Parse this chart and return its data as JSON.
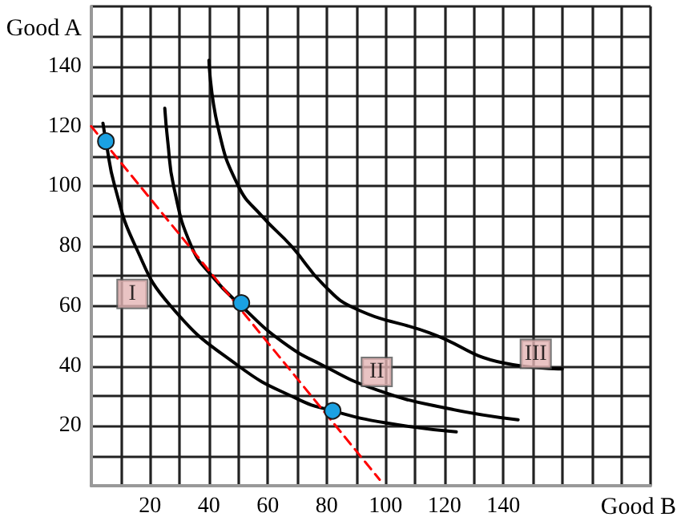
{
  "chart_data": {
    "type": "line",
    "xlabel": "Good B",
    "ylabel": "Good A",
    "xlim": [
      0,
      190
    ],
    "ylim": [
      0,
      160
    ],
    "xticks": [
      {
        "value": 0,
        "label": null
      },
      {
        "value": 10,
        "label": null
      },
      20,
      {
        "value": 30,
        "label": null
      },
      40,
      {
        "value": 50,
        "label": null
      },
      60,
      {
        "value": 70,
        "label": null
      },
      80,
      {
        "value": 90,
        "label": null
      },
      100,
      {
        "value": 110,
        "label": null
      },
      120,
      {
        "value": 130,
        "label": null
      },
      140,
      {
        "value": 150,
        "label": null
      },
      {
        "value": 160,
        "label": null
      },
      {
        "value": 170,
        "label": null
      },
      {
        "value": 180,
        "label": null
      },
      {
        "value": 190,
        "label": null
      }
    ],
    "yticks": [
      {
        "value": 0,
        "label": null
      },
      {
        "value": 10,
        "label": null
      },
      20,
      {
        "value": 30,
        "label": null
      },
      40,
      {
        "value": 50,
        "label": null
      },
      60,
      {
        "value": 70,
        "label": null
      },
      80,
      {
        "value": 90,
        "label": null
      },
      100,
      {
        "value": 110,
        "label": null
      },
      120,
      {
        "value": 130,
        "label": null
      },
      140,
      {
        "value": 150,
        "label": null
      },
      {
        "value": 160,
        "label": null
      }
    ],
    "grid": true,
    "marker": "none",
    "series": [
      {
        "color": "#000000",
        "line_style": "solid",
        "x": [
          4,
          5,
          8,
          15,
          27,
          50,
          70,
          82,
          100,
          124
        ],
        "values": [
          121,
          115,
          100,
          80,
          60,
          40,
          29,
          25,
          21,
          18
        ]
      },
      {
        "color": "#000000",
        "line_style": "solid",
        "x": [
          25,
          26,
          28,
          34,
          41,
          51,
          65,
          79,
          97,
          120,
          145
        ],
        "values": [
          126,
          115,
          100,
          80,
          70,
          60,
          48,
          40,
          32,
          26,
          22
        ]
      },
      {
        "color": "#000000",
        "line_style": "solid",
        "x": [
          40,
          43,
          50,
          58,
          68,
          79,
          90,
          115,
          140,
          160
        ],
        "values": [
          142,
          120,
          100,
          90,
          80,
          67,
          59,
          51,
          41,
          39
        ]
      },
      {
        "color": "#ff0000",
        "line_style": "dashed",
        "x": [
          0,
          98
        ],
        "values": [
          120,
          2
        ]
      },
      {
        "type": "scatter",
        "marker": "circle",
        "color": "#1ba1e2",
        "x": [
          5,
          51,
          82
        ],
        "values": [
          115,
          61,
          25
        ]
      }
    ],
    "annotations": [
      {
        "text": "I",
        "x": 14,
        "y": 64
      },
      {
        "text": "II",
        "x": 97,
        "y": 38
      },
      {
        "text": "III",
        "x": 151,
        "y": 44
      }
    ]
  }
}
